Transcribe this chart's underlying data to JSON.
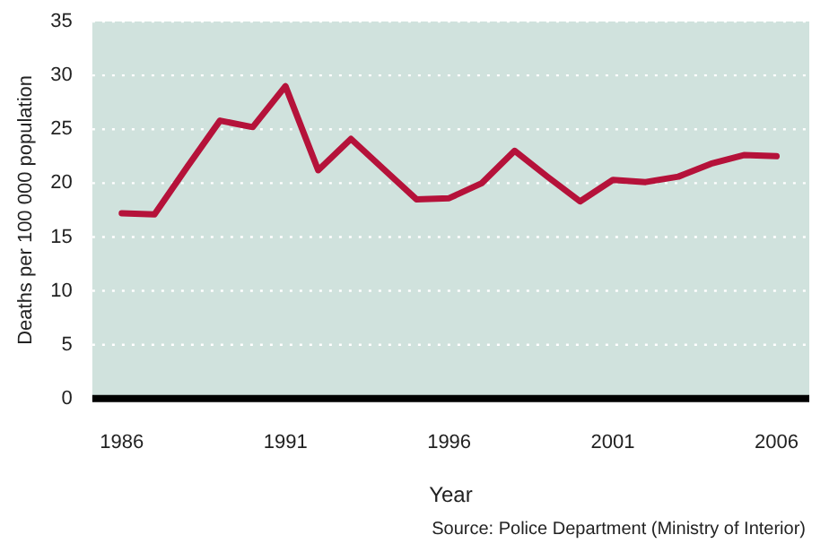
{
  "chart_data": {
    "type": "line",
    "xlabel": "Year",
    "ylabel": "Deaths per 100 000 population",
    "annotations": [
      "Source: Police Department (Ministry of Interior)"
    ],
    "x": [
      1986,
      1987,
      1988,
      1989,
      1990,
      1991,
      1992,
      1993,
      1994,
      1995,
      1996,
      1997,
      1998,
      1999,
      2000,
      2001,
      2002,
      2003,
      2004,
      2005,
      2006
    ],
    "series": [
      {
        "color": "#b5123a",
        "values": [
          17.2,
          17.1,
          21.5,
          25.8,
          25.2,
          29,
          21.2,
          24.1,
          21.3,
          18.5,
          18.6,
          20,
          23,
          20.6,
          18.3,
          20.3,
          20.1,
          20.6,
          21.8,
          22.6,
          22.5
        ]
      }
    ],
    "xlim": [
      1985.1,
      2007
    ],
    "xticks": [
      1986,
      1991,
      1996,
      2001,
      2006
    ],
    "ylim": [
      0,
      35
    ],
    "yticks": [
      0,
      5,
      10,
      15,
      20,
      25,
      30,
      35
    ],
    "grid": "y",
    "legend": false,
    "marker": "none",
    "line_style": "solid"
  }
}
